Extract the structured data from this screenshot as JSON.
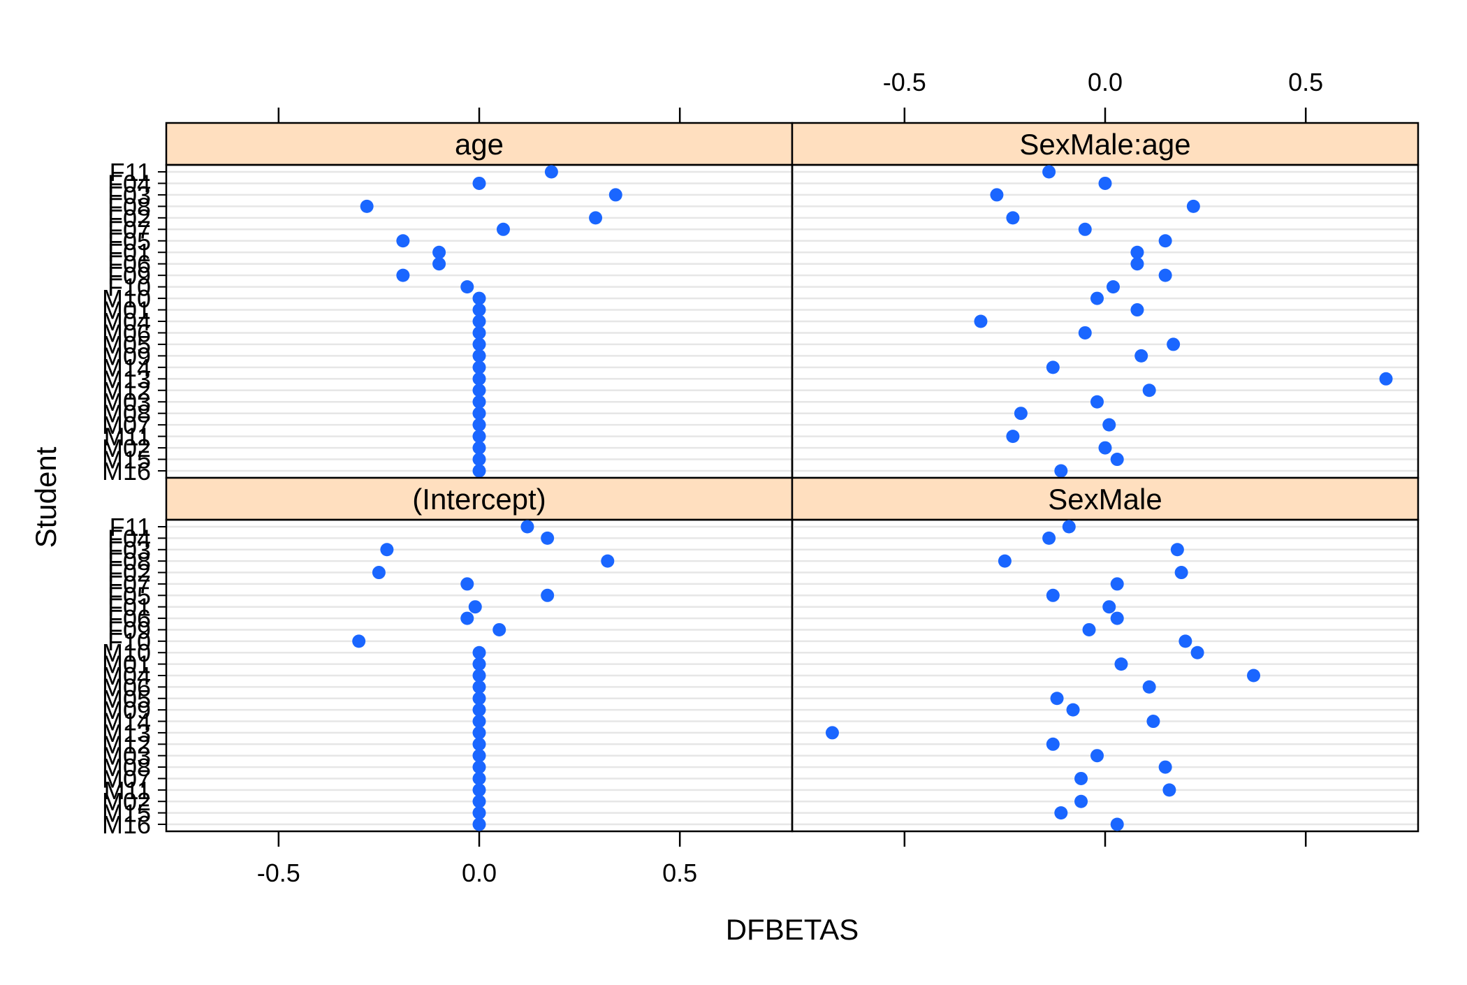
{
  "chart_data": {
    "type": "scatter",
    "xlabel": "DFBETAS",
    "ylabel": "Student",
    "xlim": [
      -0.78,
      0.78
    ],
    "x_ticks": [
      -0.5,
      0.0,
      0.5
    ],
    "x_tick_labels": [
      "-0.5",
      "0.0",
      "0.5"
    ],
    "grid": true,
    "students": [
      "F11",
      "F04",
      "F03",
      "F08",
      "F02",
      "F07",
      "F05",
      "F01",
      "F06",
      "F09",
      "F10",
      "M10",
      "M01",
      "M04",
      "M06",
      "M05",
      "M09",
      "M14",
      "M13",
      "M12",
      "M03",
      "M08",
      "M07",
      "M11",
      "M02",
      "M15",
      "M16"
    ],
    "panels": [
      {
        "name": "age",
        "values": [
          0.18,
          0.0,
          0.34,
          -0.28,
          0.29,
          0.06,
          -0.19,
          -0.1,
          -0.1,
          -0.19,
          -0.03,
          0,
          0,
          0,
          0,
          0,
          0,
          0,
          0,
          0,
          0,
          0,
          0,
          0,
          0,
          0,
          0
        ]
      },
      {
        "name": "SexMale:age",
        "values": [
          -0.14,
          0.0,
          -0.27,
          0.22,
          -0.23,
          -0.05,
          0.15,
          0.08,
          0.08,
          0.15,
          0.02,
          -0.02,
          0.08,
          -0.31,
          -0.05,
          0.17,
          0.09,
          -0.13,
          0.7,
          0.11,
          -0.02,
          -0.21,
          0.01,
          -0.23,
          0.0,
          0.03,
          -0.11
        ]
      },
      {
        "name": "(Intercept)",
        "values": [
          0.12,
          0.17,
          -0.23,
          0.32,
          -0.25,
          -0.03,
          0.17,
          -0.01,
          -0.03,
          0.05,
          -0.3,
          0,
          0,
          0,
          0,
          0,
          0,
          0,
          0,
          0,
          0,
          0,
          0,
          0,
          0,
          0,
          0
        ]
      },
      {
        "name": "SexMale",
        "values": [
          -0.09,
          -0.14,
          0.18,
          -0.25,
          0.19,
          0.03,
          -0.13,
          0.01,
          0.03,
          -0.04,
          0.2,
          0.23,
          0.04,
          0.37,
          0.11,
          -0.12,
          -0.08,
          0.12,
          -0.68,
          -0.13,
          -0.02,
          0.15,
          -0.06,
          0.16,
          -0.06,
          -0.11,
          0.03
        ]
      }
    ],
    "colors": {
      "point": "#1a66ff",
      "strip": "#ffdfbf",
      "grid": "#e6e6e6"
    }
  }
}
